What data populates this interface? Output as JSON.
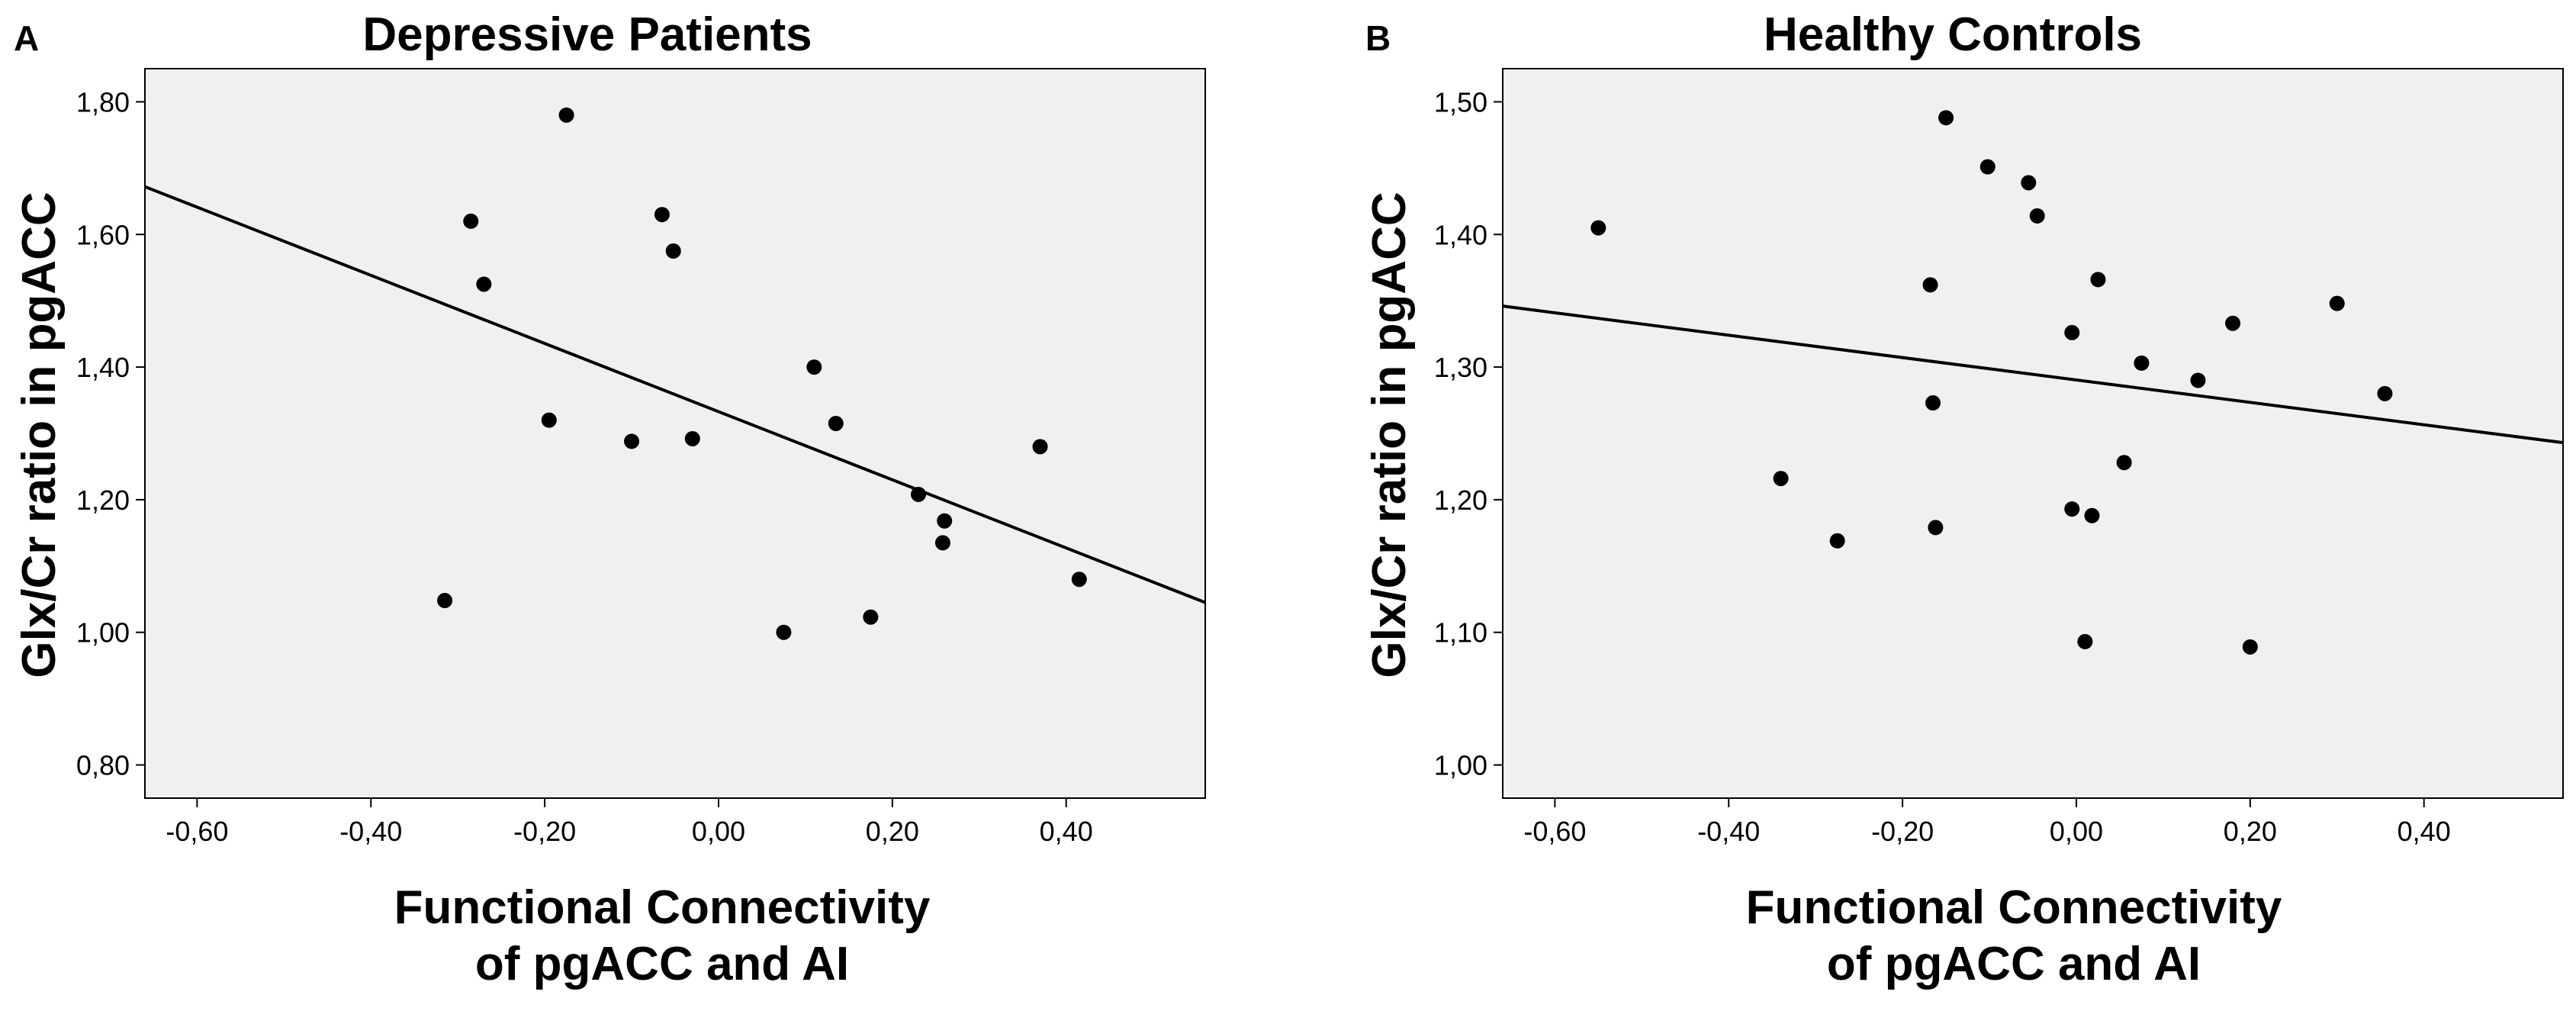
{
  "chart_data": [
    {
      "panel": "A",
      "type": "scatter",
      "title": "Depressive Patients",
      "xlabel": [
        "Functional Connectivity",
        "of pgACC and AI"
      ],
      "ylabel": "Glx/Cr ratio in pgACC",
      "xlim": [
        -0.66,
        0.56
      ],
      "ylim": [
        0.75,
        1.85
      ],
      "xticks": [
        -0.6,
        -0.4,
        -0.2,
        0.0,
        0.2,
        0.4
      ],
      "xtick_labels": [
        "-0,60",
        "-0,40",
        "-0,20",
        "0,00",
        "0,20",
        "0,40"
      ],
      "yticks": [
        0.8,
        1.0,
        1.2,
        1.4,
        1.6,
        1.8
      ],
      "ytick_labels": [
        "0,80",
        "1,00",
        "1,20",
        "1,40",
        "1,60",
        "1,80"
      ],
      "points": [
        {
          "x": -0.175,
          "y": 1.78
        },
        {
          "x": -0.285,
          "y": 1.62
        },
        {
          "x": -0.065,
          "y": 1.63
        },
        {
          "x": -0.052,
          "y": 1.575
        },
        {
          "x": -0.27,
          "y": 1.525
        },
        {
          "x": 0.11,
          "y": 1.4
        },
        {
          "x": -0.195,
          "y": 1.32
        },
        {
          "x": 0.135,
          "y": 1.315
        },
        {
          "x": -0.1,
          "y": 1.288
        },
        {
          "x": -0.03,
          "y": 1.292
        },
        {
          "x": 0.37,
          "y": 1.28
        },
        {
          "x": 0.23,
          "y": 1.208
        },
        {
          "x": 0.26,
          "y": 1.168
        },
        {
          "x": 0.258,
          "y": 1.135
        },
        {
          "x": 0.415,
          "y": 1.08
        },
        {
          "x": -0.315,
          "y": 1.048
        },
        {
          "x": 0.175,
          "y": 1.023
        },
        {
          "x": 0.075,
          "y": 1.0
        }
      ],
      "fit_line": {
        "x": [
          -0.66,
          0.56
        ],
        "y": [
          1.672,
          1.045
        ]
      }
    },
    {
      "panel": "B",
      "type": "scatter",
      "title": "Healthy Controls",
      "xlabel": [
        "Functional Connectivity",
        "of pgACC and AI"
      ],
      "ylabel": "Glx/Cr ratio in pgACC",
      "xlim": [
        -0.66,
        0.56
      ],
      "ylim": [
        0.975,
        1.525
      ],
      "xticks": [
        -0.6,
        -0.4,
        -0.2,
        0.0,
        0.2,
        0.4
      ],
      "xtick_labels": [
        "-0,60",
        "-0,40",
        "-0,20",
        "0,00",
        "0,20",
        "0,40"
      ],
      "yticks": [
        1.0,
        1.1,
        1.2,
        1.3,
        1.4,
        1.5
      ],
      "ytick_labels": [
        "1,00",
        "1,10",
        "1,20",
        "1,30",
        "1,40",
        "1,50"
      ],
      "points": [
        {
          "x": -0.15,
          "y": 1.488
        },
        {
          "x": -0.102,
          "y": 1.451
        },
        {
          "x": -0.055,
          "y": 1.439
        },
        {
          "x": -0.045,
          "y": 1.414
        },
        {
          "x": -0.55,
          "y": 1.405
        },
        {
          "x": 0.025,
          "y": 1.366
        },
        {
          "x": -0.168,
          "y": 1.362
        },
        {
          "x": 0.3,
          "y": 1.348
        },
        {
          "x": 0.18,
          "y": 1.333
        },
        {
          "x": -0.005,
          "y": 1.326
        },
        {
          "x": 0.075,
          "y": 1.303
        },
        {
          "x": 0.14,
          "y": 1.29
        },
        {
          "x": 0.355,
          "y": 1.28
        },
        {
          "x": -0.165,
          "y": 1.273
        },
        {
          "x": 0.055,
          "y": 1.228
        },
        {
          "x": -0.34,
          "y": 1.216
        },
        {
          "x": -0.005,
          "y": 1.193
        },
        {
          "x": 0.018,
          "y": 1.188
        },
        {
          "x": -0.162,
          "y": 1.179
        },
        {
          "x": -0.275,
          "y": 1.169
        },
        {
          "x": 0.01,
          "y": 1.093
        },
        {
          "x": 0.2,
          "y": 1.089
        }
      ],
      "fit_line": {
        "x": [
          -0.66,
          0.56
        ],
        "y": [
          1.346,
          1.243
        ]
      }
    }
  ]
}
